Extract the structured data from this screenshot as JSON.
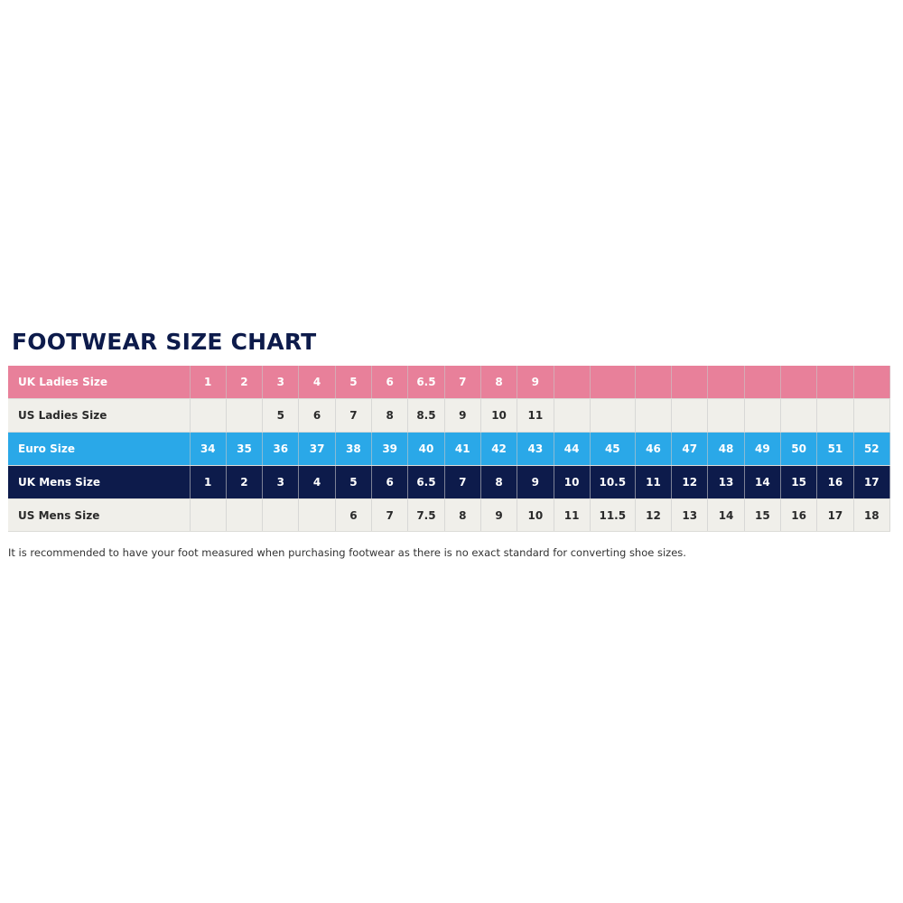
{
  "title": "FOOTWEAR SIZE CHART",
  "colors": {
    "uk_ladies": "#e8809a",
    "light_row": "#f0efea",
    "euro": "#2aa8e8",
    "uk_mens": "#0d1b4b",
    "title": "#0d1b4b"
  },
  "rows": [
    {
      "label": "UK Ladies Size",
      "style": "uk_ladies",
      "values": [
        "1",
        "2",
        "3",
        "4",
        "5",
        "6",
        "6.5",
        "7",
        "8",
        "9",
        "",
        "",
        "",
        "",
        "",
        "",
        "",
        "",
        ""
      ]
    },
    {
      "label": "US Ladies Size",
      "style": "light_row",
      "values": [
        "",
        "",
        "5",
        "6",
        "7",
        "8",
        "8.5",
        "9",
        "10",
        "11",
        "",
        "",
        "",
        "",
        "",
        "",
        "",
        "",
        ""
      ]
    },
    {
      "label": "Euro Size",
      "style": "euro",
      "values": [
        "34",
        "35",
        "36",
        "37",
        "38",
        "39",
        "40",
        "41",
        "42",
        "43",
        "44",
        "45",
        "46",
        "47",
        "48",
        "49",
        "50",
        "51",
        "52"
      ]
    },
    {
      "label": "UK Mens Size",
      "style": "uk_mens",
      "values": [
        "1",
        "2",
        "3",
        "4",
        "5",
        "6",
        "6.5",
        "7",
        "8",
        "9",
        "10",
        "10.5",
        "11",
        "12",
        "13",
        "14",
        "15",
        "16",
        "17"
      ]
    },
    {
      "label": "US Mens Size",
      "style": "light_row",
      "values": [
        "",
        "",
        "",
        "",
        "6",
        "7",
        "7.5",
        "8",
        "9",
        "10",
        "11",
        "11.5",
        "12",
        "13",
        "14",
        "15",
        "16",
        "17",
        "18"
      ]
    }
  ],
  "footnote": "It is recommended to have your foot measured when purchasing footwear as there is no exact standard for converting shoe sizes."
}
